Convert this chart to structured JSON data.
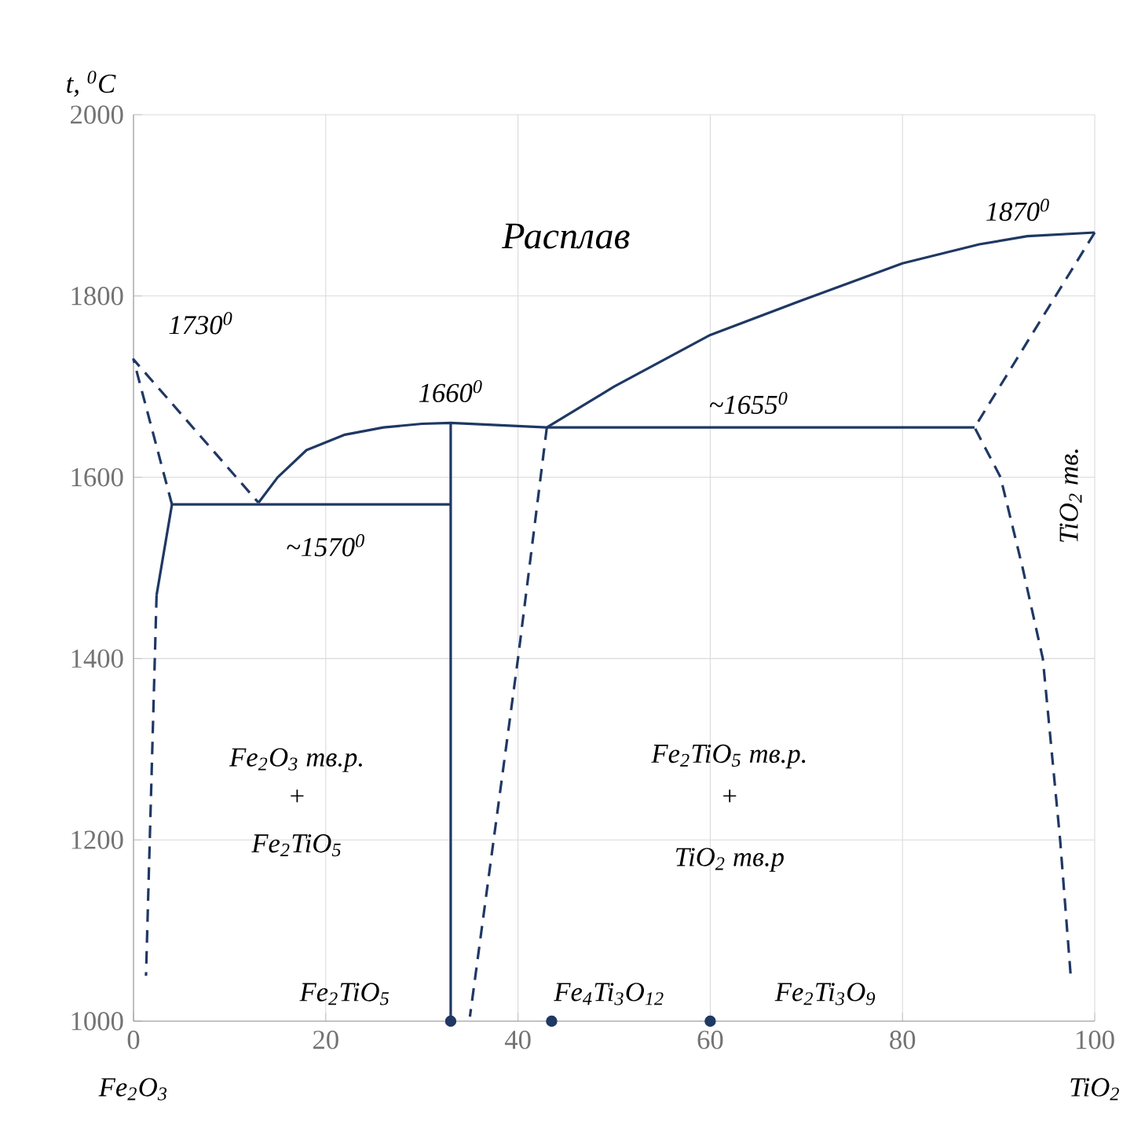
{
  "chart_data": {
    "type": "line",
    "ylabel": "*t*, $^{0}$C",
    "xlim": [
      0,
      100
    ],
    "xticks": [
      0,
      20,
      40,
      60,
      80,
      100
    ],
    "ylim": [
      1000,
      2000
    ],
    "yticks": [
      1000,
      1200,
      1400,
      1600,
      1800,
      2000
    ],
    "grid": true,
    "marker": "none",
    "series": [
      {
        "color": "#1f3864",
        "line_style": "solid",
        "x": [
          13,
          15,
          18,
          22,
          26,
          30,
          33,
          43,
          50,
          60,
          70,
          80,
          88,
          93,
          100
        ],
        "values": [
          1572,
          1600,
          1630,
          1647,
          1655,
          1659,
          1660,
          1655,
          1700,
          1757,
          1797,
          1836,
          1857,
          1866,
          1870
        ]
      },
      {
        "color": "#1f3864",
        "line_style": "solid",
        "x": [
          2.4,
          4,
          33
        ],
        "values": [
          1470,
          1570,
          1570
        ]
      },
      {
        "color": "#1f3864",
        "line_style": "solid",
        "x": [
          33,
          33
        ],
        "values": [
          1000,
          1660
        ]
      },
      {
        "color": "#1f3864",
        "line_style": "solid",
        "x": [
          43,
          87.5
        ],
        "values": [
          1655,
          1655
        ]
      },
      {
        "color": "#1f3864",
        "line_style": "dashed",
        "x": [
          4,
          0,
          13
        ],
        "values": [
          1570,
          1730,
          1572
        ]
      },
      {
        "color": "#1f3864",
        "line_style": "dashed",
        "x": [
          2.4,
          1.3
        ],
        "values": [
          1470,
          1050
        ]
      },
      {
        "color": "#1f3864",
        "line_style": "dashed",
        "x": [
          43,
          40,
          35
        ],
        "values": [
          1655,
          1400,
          1005
        ]
      },
      {
        "color": "#1f3864",
        "line_style": "dashed",
        "x": [
          100,
          87.5,
          90.2,
          92.5,
          94.6,
          96.4,
          97.5
        ],
        "values": [
          1870,
          1655,
          1600,
          1500,
          1400,
          1200,
          1050
        ]
      },
      {
        "color": "#1f3864",
        "type": "scatter",
        "marker": "circle",
        "x": [
          33,
          43.5,
          60
        ],
        "values": [
          1000,
          1000,
          1000
        ]
      }
    ],
    "annotations": [
      "1730$^{0}$",
      "1660$^{0}$",
      "~1570$^{0}$",
      "~1655$^{0}$",
      "1870$^{0}$",
      "Расплав",
      "TiO$_{2}$ тв.",
      "Fe$_{2}$O$_{3}$ тв.р.",
      "+",
      "Fe$_{2}$TiO$_{5}$",
      "Fe$_{2}$TiO$_{5}$ тв.р.",
      "+",
      "TiO$_{2}$ тв.р",
      "Fe$_{2}$TiO$_{5}$",
      "Fe$_{4}$Ti$_{3}$O$_{12}$",
      "Fe$_{2}$Ti$_{3}$O$_{9}$",
      "Fe$_{2}$O$_{3}$",
      "TiO$_{2}$"
    ]
  }
}
